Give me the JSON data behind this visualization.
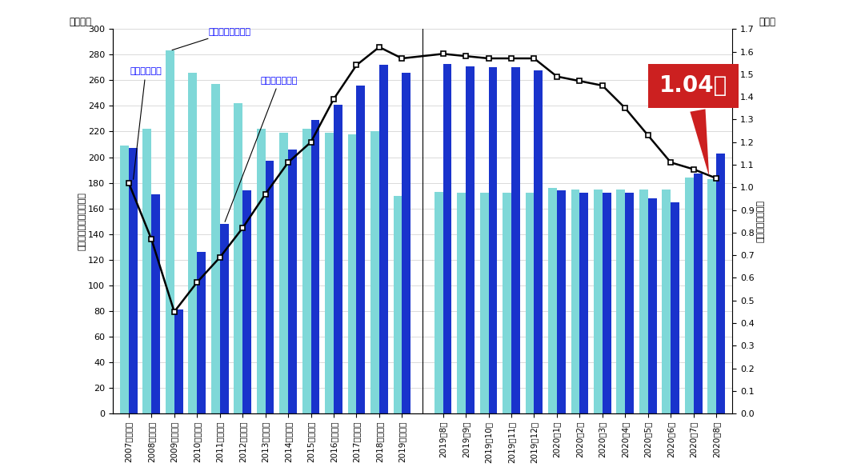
{
  "categories": [
    "2007年度平均",
    "2008年度平均",
    "2009年度平均",
    "2010年度平均",
    "2011年度平均",
    "2012年度平均",
    "2013年度平均",
    "2014年度平均",
    "2015年度平均",
    "2016年度平均",
    "2017年度平均",
    "2018年度平均",
    "2019年度平均",
    "2019年8月",
    "2019年9月",
    "2019年10月",
    "2019年11月",
    "2019年12月",
    "2020年1月",
    "2020年2月",
    "2020年3月",
    "2020年4月",
    "2020年5月",
    "2020年6月",
    "2020年7月",
    "2020年8月"
  ],
  "job_offers": [
    207,
    171,
    81,
    126,
    148,
    174,
    197,
    206,
    229,
    241,
    256,
    272,
    266,
    273,
    271,
    270,
    270,
    268,
    174,
    172,
    172,
    172,
    168,
    165,
    187,
    203
  ],
  "job_seekers": [
    209,
    222,
    283,
    266,
    257,
    242,
    222,
    219,
    222,
    219,
    218,
    220,
    170,
    173,
    172,
    172,
    172,
    172,
    176,
    175,
    175,
    175,
    175,
    175,
    184,
    183
  ],
  "ratio": [
    1.02,
    0.77,
    0.45,
    0.58,
    0.69,
    0.82,
    0.97,
    1.11,
    1.2,
    1.39,
    1.54,
    1.62,
    1.57,
    1.59,
    1.58,
    1.57,
    1.57,
    1.57,
    1.49,
    1.47,
    1.45,
    1.35,
    1.23,
    1.11,
    1.08,
    1.04
  ],
  "offer_color": "#1933cc",
  "seeker_color": "#7fd8d8",
  "ratio_color": "#000000",
  "background_color": "#ffffff",
  "ylim_left": [
    0,
    300
  ],
  "ylim_right": [
    0.0,
    1.7
  ],
  "yticks_left": [
    0,
    20,
    40,
    60,
    80,
    100,
    120,
    140,
    160,
    180,
    200,
    220,
    240,
    260,
    280,
    300
  ],
  "yticks_right": [
    0.0,
    0.1,
    0.2,
    0.3,
    0.4,
    0.5,
    0.6,
    0.7,
    0.8,
    0.9,
    1.0,
    1.1,
    1.2,
    1.3,
    1.4,
    1.5,
    1.6,
    1.7
  ],
  "ylabel_left": "＜有効求人・有効求職＞",
  "ylabel_right": "＜有効求人倍率＞",
  "xlabel_left": "（万人）",
  "xlabel_right": "（倍）",
  "annotation_text": "1.04倍",
  "legend_ratio": "有効求人倍率",
  "legend_seeker": "月間有効求職者数",
  "legend_offer": "月間有効求人数"
}
